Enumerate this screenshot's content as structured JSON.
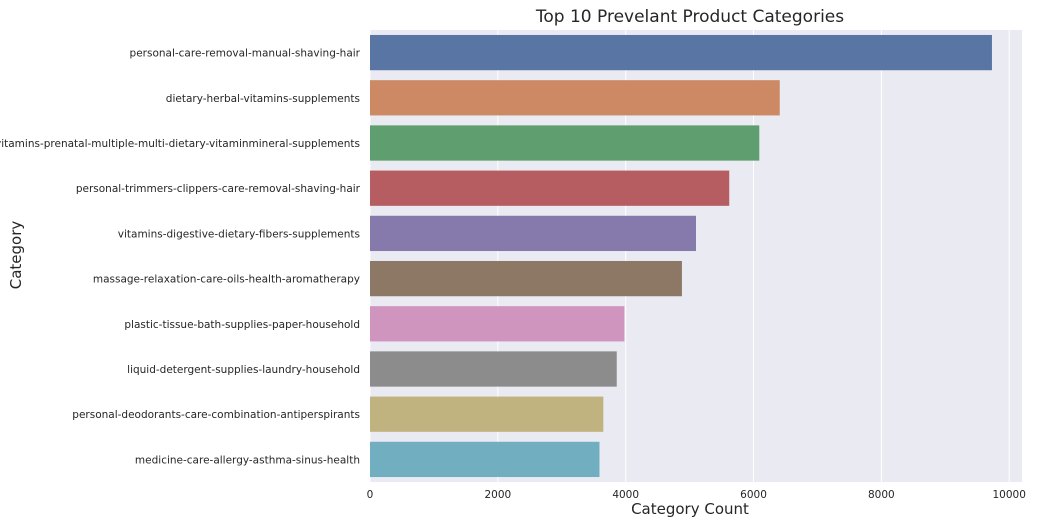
{
  "chart_data": {
    "type": "bar",
    "orientation": "horizontal",
    "title": "Top 10 Prevelant Product Categories",
    "xlabel": "Category Count",
    "ylabel": "Category",
    "xlim": [
      0,
      10200
    ],
    "xticks": [
      0,
      2000,
      4000,
      6000,
      8000,
      10000
    ],
    "grid": true,
    "categories": [
      "personal-care-removal-manual-shaving-hair",
      "dietary-herbal-vitamins-supplements",
      "vitamins-prenatal-multiple-multi-dietary-vitaminmineral-supplements",
      "personal-trimmers-clippers-care-removal-shaving-hair",
      "vitamins-digestive-dietary-fibers-supplements",
      "massage-relaxation-care-oils-health-aromatherapy",
      "plastic-tissue-bath-supplies-paper-household",
      "liquid-detergent-supplies-laundry-household",
      "personal-deodorants-care-combination-antiperspirants",
      "medicine-care-allergy-asthma-sinus-health"
    ],
    "values": [
      9730,
      6410,
      6090,
      5620,
      5100,
      4880,
      3980,
      3860,
      3650,
      3590
    ],
    "colors": [
      "#5975a4",
      "#cc8963",
      "#5f9e6e",
      "#b55d60",
      "#857aab",
      "#8d7866",
      "#d095bf",
      "#8c8c8c",
      "#c1b37f",
      "#71aec0"
    ],
    "background_color": "#eaeaf2"
  }
}
